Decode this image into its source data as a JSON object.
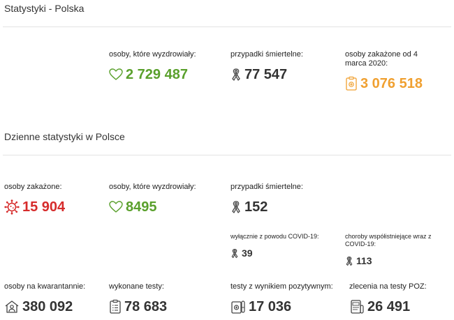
{
  "colors": {
    "recovered": "#5aa02c",
    "deaths": "#333333",
    "infected_total": "#f0a030",
    "infected_daily": "#d62b2b"
  },
  "poland": {
    "title": "Statystyki - Polska",
    "recovered": {
      "label": "osoby, które wyzdrowiały:",
      "value": "2 729 487",
      "icon": "heart-icon"
    },
    "deaths": {
      "label": "przypadki śmiertelne:",
      "value": "77 547",
      "icon": "ribbon-icon"
    },
    "infected": {
      "label": "osoby zakażone od 4 marca 2020:",
      "value": "3 076 518",
      "icon": "clipboard-medical-icon"
    }
  },
  "daily": {
    "title": "Dzienne statystyki w Polsce",
    "infected": {
      "label": "osoby zakażone:",
      "value": "15 904",
      "icon": "virus-icon"
    },
    "recovered": {
      "label": "osoby, które wyzdrowiały:",
      "value": "8495",
      "icon": "heart-icon"
    },
    "deaths": {
      "label": "przypadki śmiertelne:",
      "value": "152",
      "icon": "ribbon-icon"
    },
    "deaths_covid_only": {
      "label": "wyłącznie z powodu COVID-19:",
      "value": "39",
      "icon": "ribbon-icon"
    },
    "deaths_comorbid": {
      "label": "choroby współistniejące wraz z COVID-19:",
      "value": "113",
      "icon": "ribbon-icon"
    },
    "quarantine": {
      "label": "osoby na kwarantannie:",
      "value": "380 092",
      "icon": "house-person-icon"
    },
    "tests": {
      "label": "wykonane testy:",
      "value": "78 683",
      "icon": "clipboard-list-icon"
    },
    "positive_tests": {
      "label": "testy z wynikiem pozytywnym:",
      "value": "17 036",
      "icon": "test-tube-icon"
    },
    "poz_orders": {
      "label": "zlecenia na testy POZ:",
      "value": "26 491",
      "icon": "poz-order-icon"
    }
  }
}
